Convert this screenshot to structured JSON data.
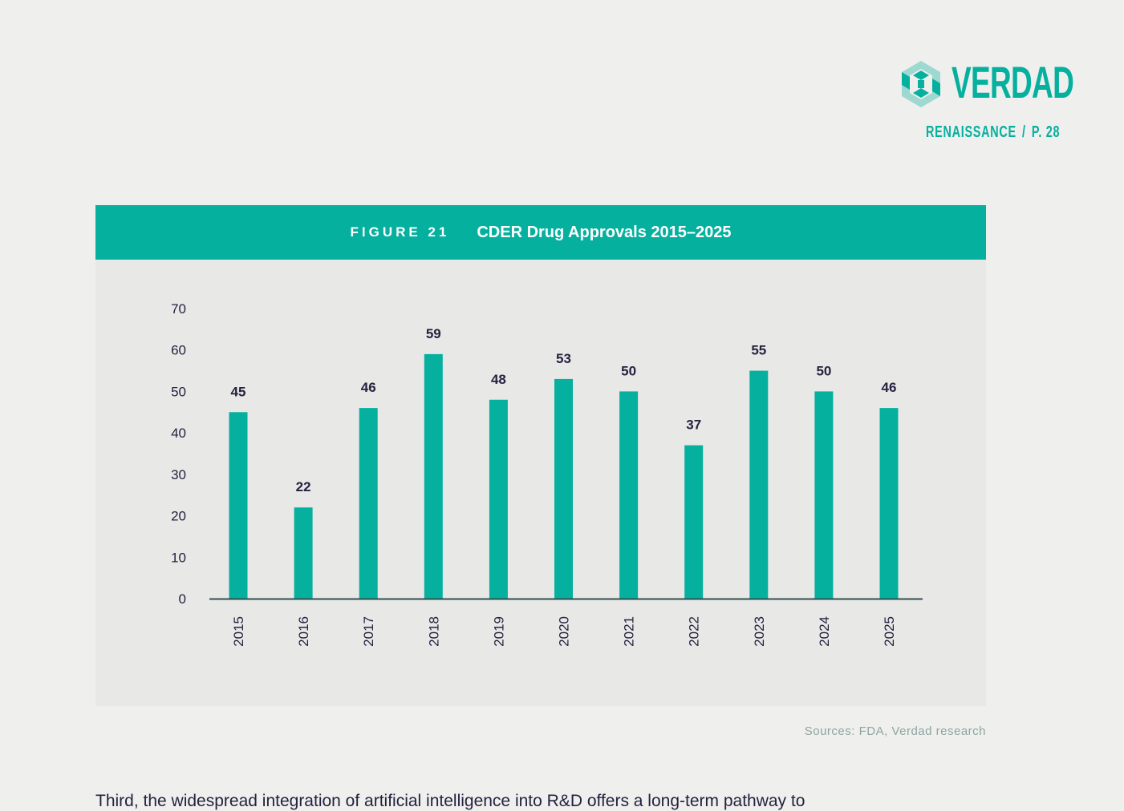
{
  "brand": {
    "name": "VERDAD",
    "publication": "RENAISSANCE",
    "separator": "/",
    "page": "P. 28",
    "color": "#05b09e"
  },
  "figure": {
    "label": "FIGURE 21",
    "title": "CDER Drug Approvals 2015–2025",
    "source": "Sources: FDA, Verdad research"
  },
  "body": {
    "text": "Third, the widespread integration of artificial intelligence into R&D offers a long-term pathway to"
  },
  "chart_data": {
    "type": "bar",
    "categories": [
      "2015",
      "2016",
      "2017",
      "2018",
      "2019",
      "2020",
      "2021",
      "2022",
      "2023",
      "2024",
      "2025"
    ],
    "values": [
      45,
      22,
      46,
      59,
      48,
      53,
      50,
      37,
      55,
      50,
      46
    ],
    "ylim": [
      0,
      70
    ],
    "yticks": [
      0,
      10,
      20,
      30,
      40,
      50,
      60,
      70
    ],
    "title": "CDER Drug Approvals 2015–2025",
    "xlabel": "",
    "ylabel": "",
    "grid": false,
    "data_labels": true,
    "bar_color": "#05b09e",
    "label_color": "#24223f",
    "axis_color": "#2f4f4f"
  }
}
